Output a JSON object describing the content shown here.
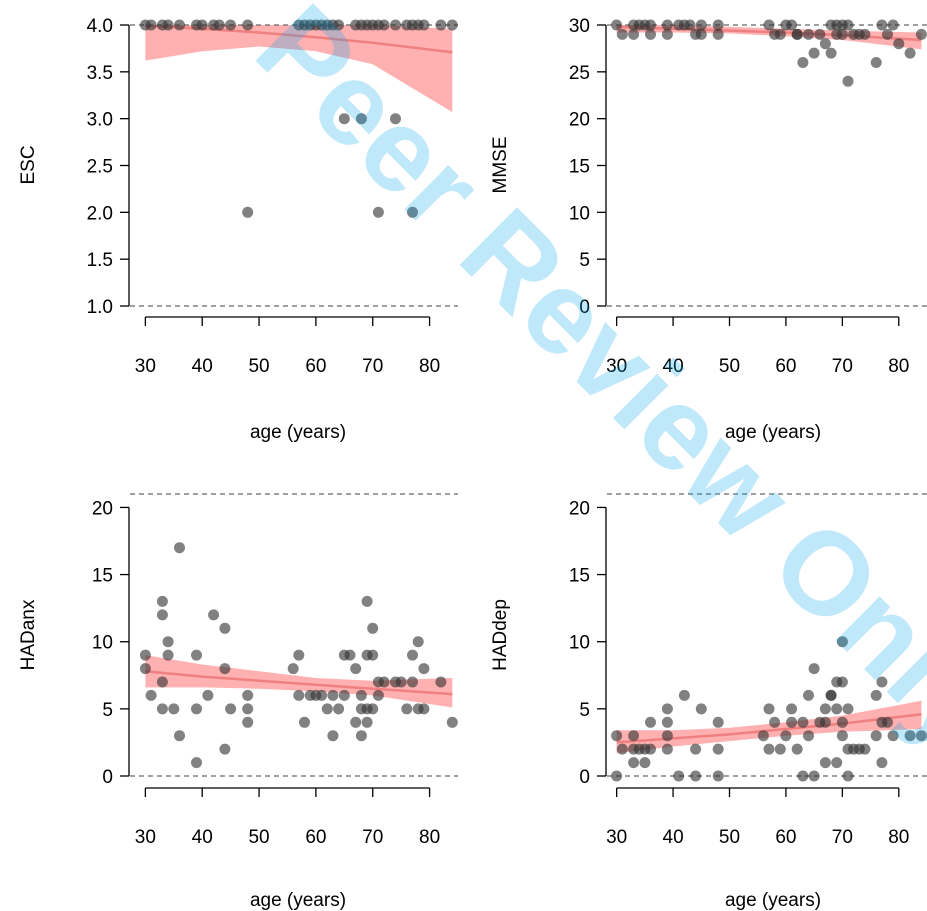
{
  "watermark": {
    "text": "Peer Review Only"
  },
  "colors": {
    "point": "#333333",
    "ci_band": "#ff6f6f",
    "fit_line": "#f08080",
    "ref_line": "#666666"
  },
  "chart_data": [
    {
      "type": "scatter",
      "title": "",
      "xlabel": "age (years)",
      "ylabel": "ESC",
      "xlim": [
        28,
        85
      ],
      "ylim": [
        1.0,
        4.0
      ],
      "xticks": [
        30,
        40,
        50,
        60,
        70,
        80
      ],
      "yticks": [
        1.0,
        1.5,
        2.0,
        2.5,
        3.0,
        3.5,
        4.0
      ],
      "ytick_labels": [
        "1.0",
        "1.5",
        "2.0",
        "2.5",
        "3.0",
        "3.5",
        "4.0"
      ],
      "reference_lines": [
        1.0,
        4.0
      ],
      "points": [
        [
          30,
          4
        ],
        [
          31,
          4
        ],
        [
          33,
          4
        ],
        [
          34,
          4
        ],
        [
          36,
          4
        ],
        [
          39,
          4
        ],
        [
          40,
          4
        ],
        [
          42,
          4
        ],
        [
          43,
          4
        ],
        [
          45,
          4
        ],
        [
          48,
          4
        ],
        [
          57,
          4
        ],
        [
          58,
          4
        ],
        [
          59,
          4
        ],
        [
          60,
          4
        ],
        [
          61,
          4
        ],
        [
          62,
          4
        ],
        [
          63,
          4
        ],
        [
          64,
          4
        ],
        [
          67,
          4
        ],
        [
          68,
          4
        ],
        [
          69,
          4
        ],
        [
          70,
          4
        ],
        [
          71,
          4
        ],
        [
          72,
          4
        ],
        [
          74,
          4
        ],
        [
          76,
          4
        ],
        [
          77,
          4
        ],
        [
          78,
          4
        ],
        [
          79,
          4
        ],
        [
          82,
          4
        ],
        [
          84,
          4
        ],
        [
          65,
          3
        ],
        [
          68,
          3
        ],
        [
          74,
          3
        ],
        [
          48,
          2
        ],
        [
          71,
          2
        ],
        [
          77,
          2
        ]
      ],
      "fit": {
        "x": [
          30,
          40,
          50,
          60,
          70,
          84
        ],
        "y": [
          3.99,
          3.96,
          3.92,
          3.87,
          3.81,
          3.71
        ]
      },
      "ci": {
        "x": [
          30,
          40,
          50,
          60,
          70,
          84
        ],
        "lower": [
          3.62,
          3.72,
          3.77,
          3.72,
          3.58,
          3.07
        ],
        "upper": [
          4.0,
          4.0,
          4.0,
          4.0,
          4.0,
          3.96
        ]
      }
    },
    {
      "type": "scatter",
      "title": "",
      "xlabel": "age (years)",
      "ylabel": "MMSE",
      "xlim": [
        29,
        85
      ],
      "ylim": [
        0,
        30
      ],
      "xticks": [
        30,
        40,
        50,
        60,
        70,
        80
      ],
      "yticks": [
        0,
        5,
        10,
        15,
        20,
        25,
        30
      ],
      "ytick_labels": [
        "0",
        "5",
        "10",
        "15",
        "20",
        "25",
        "30"
      ],
      "reference_lines": [
        0,
        30
      ],
      "points": [
        [
          30,
          30
        ],
        [
          31,
          29
        ],
        [
          33,
          29
        ],
        [
          33,
          30
        ],
        [
          34,
          30
        ],
        [
          35,
          30
        ],
        [
          36,
          29
        ],
        [
          36,
          30
        ],
        [
          39,
          30
        ],
        [
          39,
          29
        ],
        [
          41,
          30
        ],
        [
          42,
          30
        ],
        [
          43,
          30
        ],
        [
          44,
          29
        ],
        [
          45,
          29
        ],
        [
          45,
          30
        ],
        [
          48,
          30
        ],
        [
          48,
          29
        ],
        [
          57,
          30
        ],
        [
          58,
          29
        ],
        [
          59,
          29
        ],
        [
          60,
          30
        ],
        [
          61,
          30
        ],
        [
          62,
          29
        ],
        [
          62,
          29
        ],
        [
          63,
          26
        ],
        [
          64,
          29
        ],
        [
          65,
          27
        ],
        [
          66,
          29
        ],
        [
          67,
          28
        ],
        [
          68,
          30
        ],
        [
          68,
          27
        ],
        [
          69,
          30
        ],
        [
          69,
          29
        ],
        [
          70,
          30
        ],
        [
          70,
          29
        ],
        [
          71,
          24
        ],
        [
          71,
          30
        ],
        [
          72,
          29
        ],
        [
          73,
          29
        ],
        [
          74,
          29
        ],
        [
          76,
          26
        ],
        [
          77,
          30
        ],
        [
          78,
          29
        ],
        [
          79,
          30
        ],
        [
          80,
          28
        ],
        [
          82,
          27
        ],
        [
          84,
          29
        ]
      ],
      "fit": {
        "x": [
          30,
          40,
          50,
          60,
          70,
          84
        ],
        "y": [
          29.8,
          29.6,
          29.4,
          29.2,
          28.9,
          28.4
        ]
      },
      "ci": {
        "x": [
          30,
          40,
          50,
          60,
          70,
          84
        ],
        "lower": [
          29.2,
          29.2,
          29.1,
          28.8,
          28.4,
          27.4
        ],
        "upper": [
          30.0,
          30.0,
          29.8,
          29.6,
          29.4,
          29.2
        ]
      }
    },
    {
      "type": "scatter",
      "title": "",
      "xlabel": "age (years)",
      "ylabel": "HADanx",
      "xlim": [
        28,
        85
      ],
      "ylim": [
        0,
        21
      ],
      "xticks": [
        30,
        40,
        50,
        60,
        70,
        80
      ],
      "yticks": [
        0,
        5,
        10,
        15,
        20
      ],
      "ytick_labels": [
        "0",
        "5",
        "10",
        "15",
        "20"
      ],
      "reference_lines": [
        0,
        21
      ],
      "points": [
        [
          30,
          9
        ],
        [
          30,
          8
        ],
        [
          31,
          6
        ],
        [
          33,
          13
        ],
        [
          33,
          12
        ],
        [
          33,
          7
        ],
        [
          33,
          5
        ],
        [
          34,
          10
        ],
        [
          34,
          9
        ],
        [
          35,
          5
        ],
        [
          36,
          17
        ],
        [
          36,
          3
        ],
        [
          39,
          9
        ],
        [
          39,
          5
        ],
        [
          39,
          1
        ],
        [
          41,
          6
        ],
        [
          42,
          12
        ],
        [
          44,
          11
        ],
        [
          44,
          8
        ],
        [
          44,
          2
        ],
        [
          45,
          5
        ],
        [
          48,
          6
        ],
        [
          48,
          5
        ],
        [
          48,
          4
        ],
        [
          56,
          8
        ],
        [
          57,
          9
        ],
        [
          57,
          6
        ],
        [
          58,
          4
        ],
        [
          59,
          6
        ],
        [
          60,
          6
        ],
        [
          61,
          6
        ],
        [
          62,
          5
        ],
        [
          63,
          6
        ],
        [
          63,
          3
        ],
        [
          64,
          5
        ],
        [
          65,
          9
        ],
        [
          65,
          6
        ],
        [
          66,
          9
        ],
        [
          67,
          8
        ],
        [
          67,
          4
        ],
        [
          68,
          6
        ],
        [
          68,
          5
        ],
        [
          68,
          3
        ],
        [
          69,
          13
        ],
        [
          69,
          9
        ],
        [
          69,
          5
        ],
        [
          69,
          4
        ],
        [
          70,
          11
        ],
        [
          70,
          9
        ],
        [
          70,
          5
        ],
        [
          71,
          7
        ],
        [
          71,
          6
        ],
        [
          72,
          7
        ],
        [
          74,
          7
        ],
        [
          75,
          7
        ],
        [
          76,
          5
        ],
        [
          77,
          9
        ],
        [
          77,
          7
        ],
        [
          78,
          10
        ],
        [
          78,
          5
        ],
        [
          79,
          8
        ],
        [
          79,
          5
        ],
        [
          82,
          7
        ],
        [
          84,
          4
        ]
      ],
      "fit": {
        "x": [
          30,
          40,
          50,
          60,
          70,
          84
        ],
        "y": [
          7.8,
          7.4,
          7.1,
          6.8,
          6.5,
          6.1
        ]
      },
      "ci": {
        "x": [
          30,
          40,
          50,
          60,
          70,
          84
        ],
        "lower": [
          6.6,
          6.6,
          6.5,
          6.3,
          6.0,
          5.1
        ],
        "upper": [
          9.0,
          8.3,
          7.8,
          7.3,
          7.1,
          7.3
        ]
      }
    },
    {
      "type": "scatter",
      "title": "",
      "xlabel": "age (years)",
      "ylabel": "HADdep",
      "xlim": [
        29,
        85
      ],
      "ylim": [
        0,
        21
      ],
      "xticks": [
        30,
        40,
        50,
        60,
        70,
        80
      ],
      "yticks": [
        0,
        5,
        10,
        15,
        20
      ],
      "ytick_labels": [
        "0",
        "5",
        "10",
        "15",
        "20"
      ],
      "reference_lines": [
        0,
        21
      ],
      "points": [
        [
          30,
          3
        ],
        [
          30,
          0
        ],
        [
          31,
          2
        ],
        [
          33,
          3
        ],
        [
          33,
          2
        ],
        [
          33,
          1
        ],
        [
          34,
          2
        ],
        [
          35,
          2
        ],
        [
          35,
          1
        ],
        [
          36,
          4
        ],
        [
          36,
          2
        ],
        [
          39,
          5
        ],
        [
          39,
          4
        ],
        [
          39,
          3
        ],
        [
          39,
          2
        ],
        [
          41,
          0
        ],
        [
          42,
          6
        ],
        [
          44,
          2
        ],
        [
          44,
          0
        ],
        [
          45,
          5
        ],
        [
          48,
          4
        ],
        [
          48,
          2
        ],
        [
          48,
          0
        ],
        [
          56,
          3
        ],
        [
          57,
          5
        ],
        [
          57,
          2
        ],
        [
          58,
          4
        ],
        [
          59,
          2
        ],
        [
          60,
          3
        ],
        [
          61,
          5
        ],
        [
          61,
          4
        ],
        [
          62,
          2
        ],
        [
          63,
          4
        ],
        [
          63,
          0
        ],
        [
          64,
          6
        ],
        [
          64,
          3
        ],
        [
          65,
          8
        ],
        [
          65,
          0
        ],
        [
          66,
          4
        ],
        [
          67,
          5
        ],
        [
          67,
          4
        ],
        [
          67,
          1
        ],
        [
          68,
          6
        ],
        [
          68,
          6
        ],
        [
          69,
          7
        ],
        [
          69,
          5
        ],
        [
          69,
          1
        ],
        [
          70,
          10
        ],
        [
          70,
          7
        ],
        [
          70,
          4
        ],
        [
          70,
          3
        ],
        [
          71,
          5
        ],
        [
          71,
          2
        ],
        [
          71,
          0
        ],
        [
          72,
          2
        ],
        [
          73,
          2
        ],
        [
          74,
          2
        ],
        [
          76,
          6
        ],
        [
          76,
          3
        ],
        [
          77,
          7
        ],
        [
          77,
          4
        ],
        [
          77,
          1
        ],
        [
          78,
          4
        ],
        [
          79,
          3
        ],
        [
          82,
          3
        ],
        [
          84,
          3
        ]
      ],
      "fit": {
        "x": [
          30,
          40,
          50,
          60,
          70,
          84
        ],
        "y": [
          2.5,
          2.8,
          3.1,
          3.5,
          3.9,
          4.6
        ]
      },
      "ci": {
        "x": [
          30,
          40,
          50,
          60,
          70,
          84
        ],
        "lower": [
          1.7,
          2.2,
          2.6,
          3.0,
          3.3,
          3.5
        ],
        "upper": [
          3.4,
          3.4,
          3.6,
          4.0,
          4.5,
          5.6
        ]
      }
    }
  ]
}
